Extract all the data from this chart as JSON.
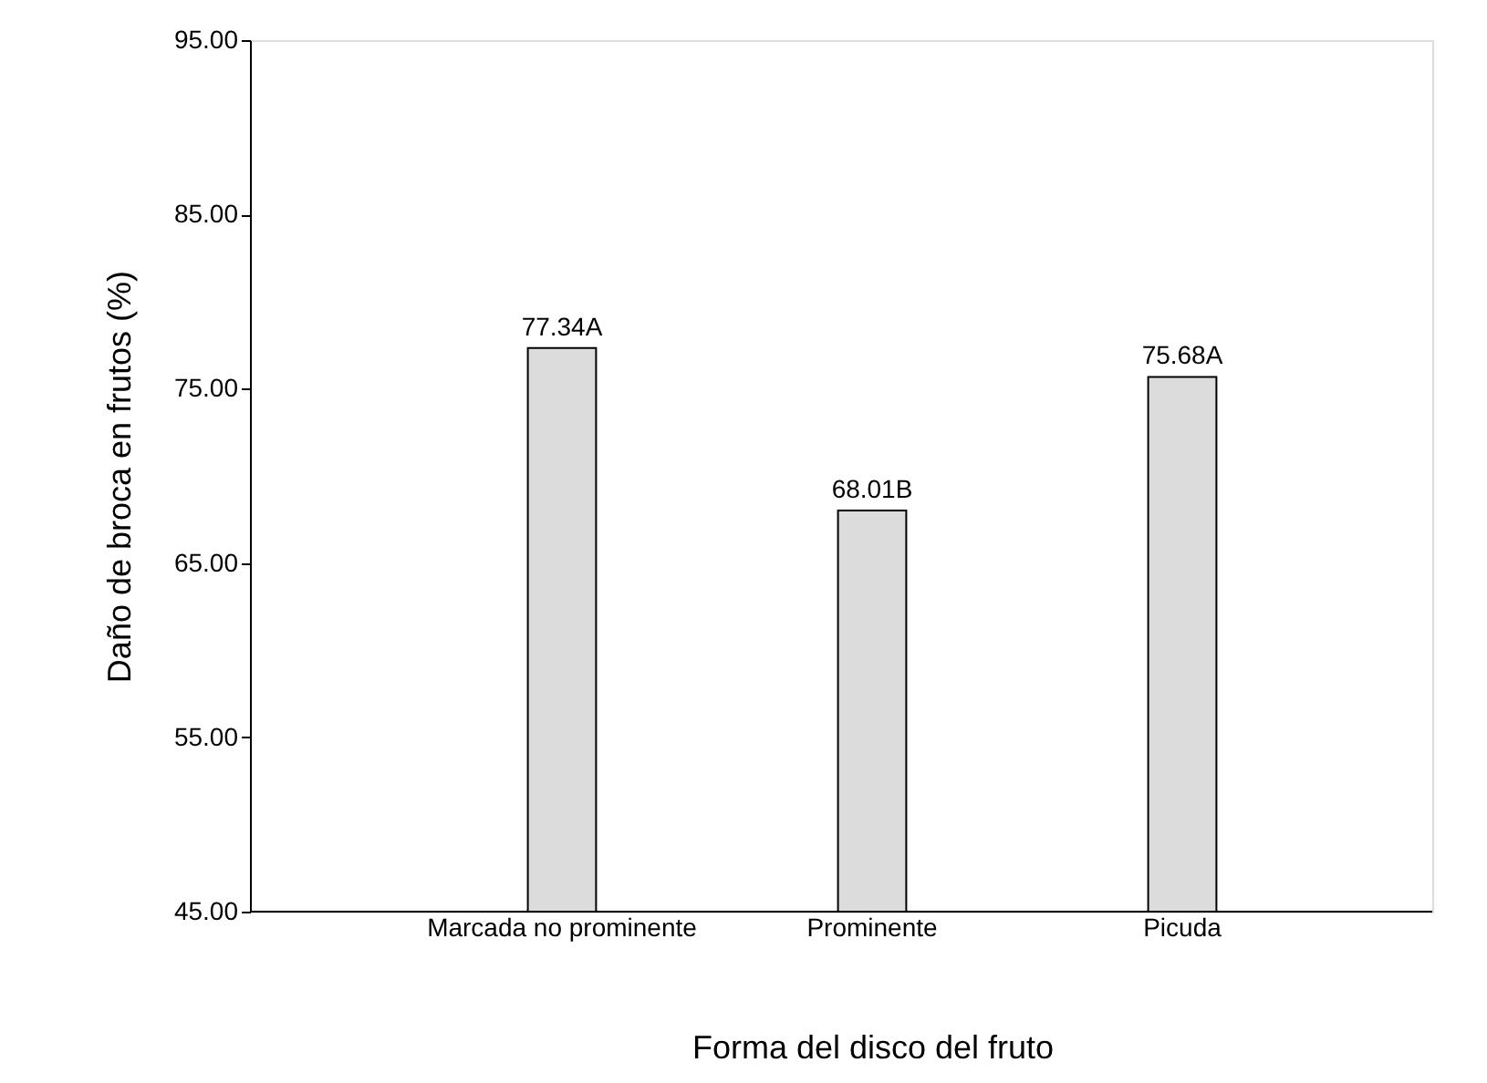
{
  "chart_data": {
    "type": "bar",
    "xlabel": "Forma del disco del fruto",
    "ylabel": "Daño de broca en frutos (%)",
    "categories": [
      "Marcada no prominente",
      "Prominente",
      "Picuda"
    ],
    "values": [
      77.34,
      68.01,
      75.68
    ],
    "value_labels": [
      "77.34A",
      "68.01B",
      "75.68A"
    ],
    "color": "#dcdcdc",
    "ylim": [
      45,
      95
    ],
    "yticks": [
      {
        "value": 45,
        "label": "45.00"
      },
      {
        "value": 55,
        "label": "55.00"
      },
      {
        "value": 65,
        "label": "65.00"
      },
      {
        "value": 75,
        "label": "75.00"
      },
      {
        "value": 85,
        "label": "85.00"
      },
      {
        "value": 95,
        "label": "95.00"
      }
    ],
    "grid": false
  }
}
